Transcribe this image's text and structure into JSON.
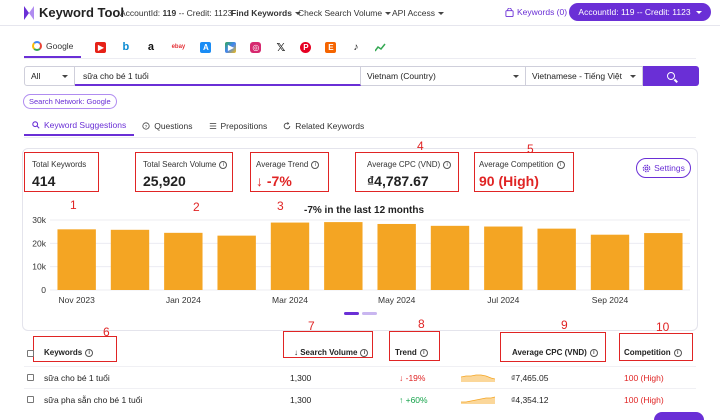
{
  "topbar": {
    "logo_text": "Keyword Tool",
    "account_label": "AccountId:",
    "account_id": "119",
    "credit_label": "-- Credit:",
    "credit_value": "1123",
    "menu": [
      "Find Keywords",
      "Check Search Volume",
      "API Access"
    ],
    "keywords_link": "Keywords (0)",
    "account_pill": "AccountId: 119 -- Credit: 1123"
  },
  "sources": {
    "active": "Google",
    "icons": [
      "youtube-icon",
      "bing-icon",
      "amazon-icon",
      "ebay-icon",
      "app-store-icon",
      "play-store-icon",
      "instagram-icon",
      "x-icon",
      "pinterest-icon",
      "etsy-icon",
      "tiktok-icon",
      "trends-icon"
    ]
  },
  "search": {
    "scope": "All",
    "query": "sữa cho bé 1 tuổi",
    "country": "Vietnam (Country)",
    "language": "Vietnamese - Tiếng Việt"
  },
  "network": "Search Network: Google",
  "tabs": [
    "Keyword Suggestions",
    "Questions",
    "Prepositions",
    "Related Keywords"
  ],
  "metrics": {
    "total_keywords": {
      "label": "Total Keywords",
      "value": "414"
    },
    "total_search_volume": {
      "label": "Total Search Volume",
      "value": "25,920"
    },
    "average_trend": {
      "label": "Average Trend",
      "value": "↓ -7%"
    },
    "average_cpc": {
      "label": "Average CPC (VND)",
      "value": "₫4,787.67"
    },
    "average_competition": {
      "label": "Average Competition",
      "value": "90 (High)"
    }
  },
  "settings_label": "Settings",
  "annotations": [
    "1",
    "2",
    "3",
    "4",
    "5",
    "6",
    "7",
    "8",
    "9",
    "10"
  ],
  "chart_data": {
    "type": "bar",
    "title": "-7% in the last 12 months",
    "categories": [
      "Nov 2023",
      "Dec 2023",
      "Jan 2024",
      "Feb 2024",
      "Mar 2024",
      "Apr 2024",
      "May 2024",
      "Jun 2024",
      "Jul 2024",
      "Aug 2024",
      "Sep 2024",
      "Oct 2024"
    ],
    "tick_labels_x": [
      "Nov 2023",
      "Jan 2024",
      "Mar 2024",
      "May 2024",
      "Jul 2024",
      "Sep 2024"
    ],
    "values": [
      26000,
      25800,
      24500,
      23300,
      28900,
      29100,
      28300,
      27500,
      27200,
      26300,
      23700,
      24400
    ],
    "ylim": [
      0,
      30000
    ],
    "yticks": [
      "0",
      "10k",
      "20k",
      "30k"
    ],
    "grid": true,
    "color": "#f4a523"
  },
  "table": {
    "headers": {
      "keywords": "Keywords",
      "search_volume": "↓ Search Volume",
      "trend": "Trend",
      "cpc": "Average CPC (VND)",
      "competition": "Competition"
    },
    "rows": [
      {
        "keyword": "sữa cho bé 1 tuổi",
        "volume": "1,300",
        "trend": "↓ -19%",
        "trend_dir": "down",
        "cpc": "₫7,465.05",
        "competition": "100 (High)"
      },
      {
        "keyword": "sữa pha sẵn cho bé 1 tuổi",
        "volume": "1,300",
        "trend": "↑ +60%",
        "trend_dir": "up",
        "cpc": "₫4,354.12",
        "competition": "100 (High)"
      }
    ]
  }
}
